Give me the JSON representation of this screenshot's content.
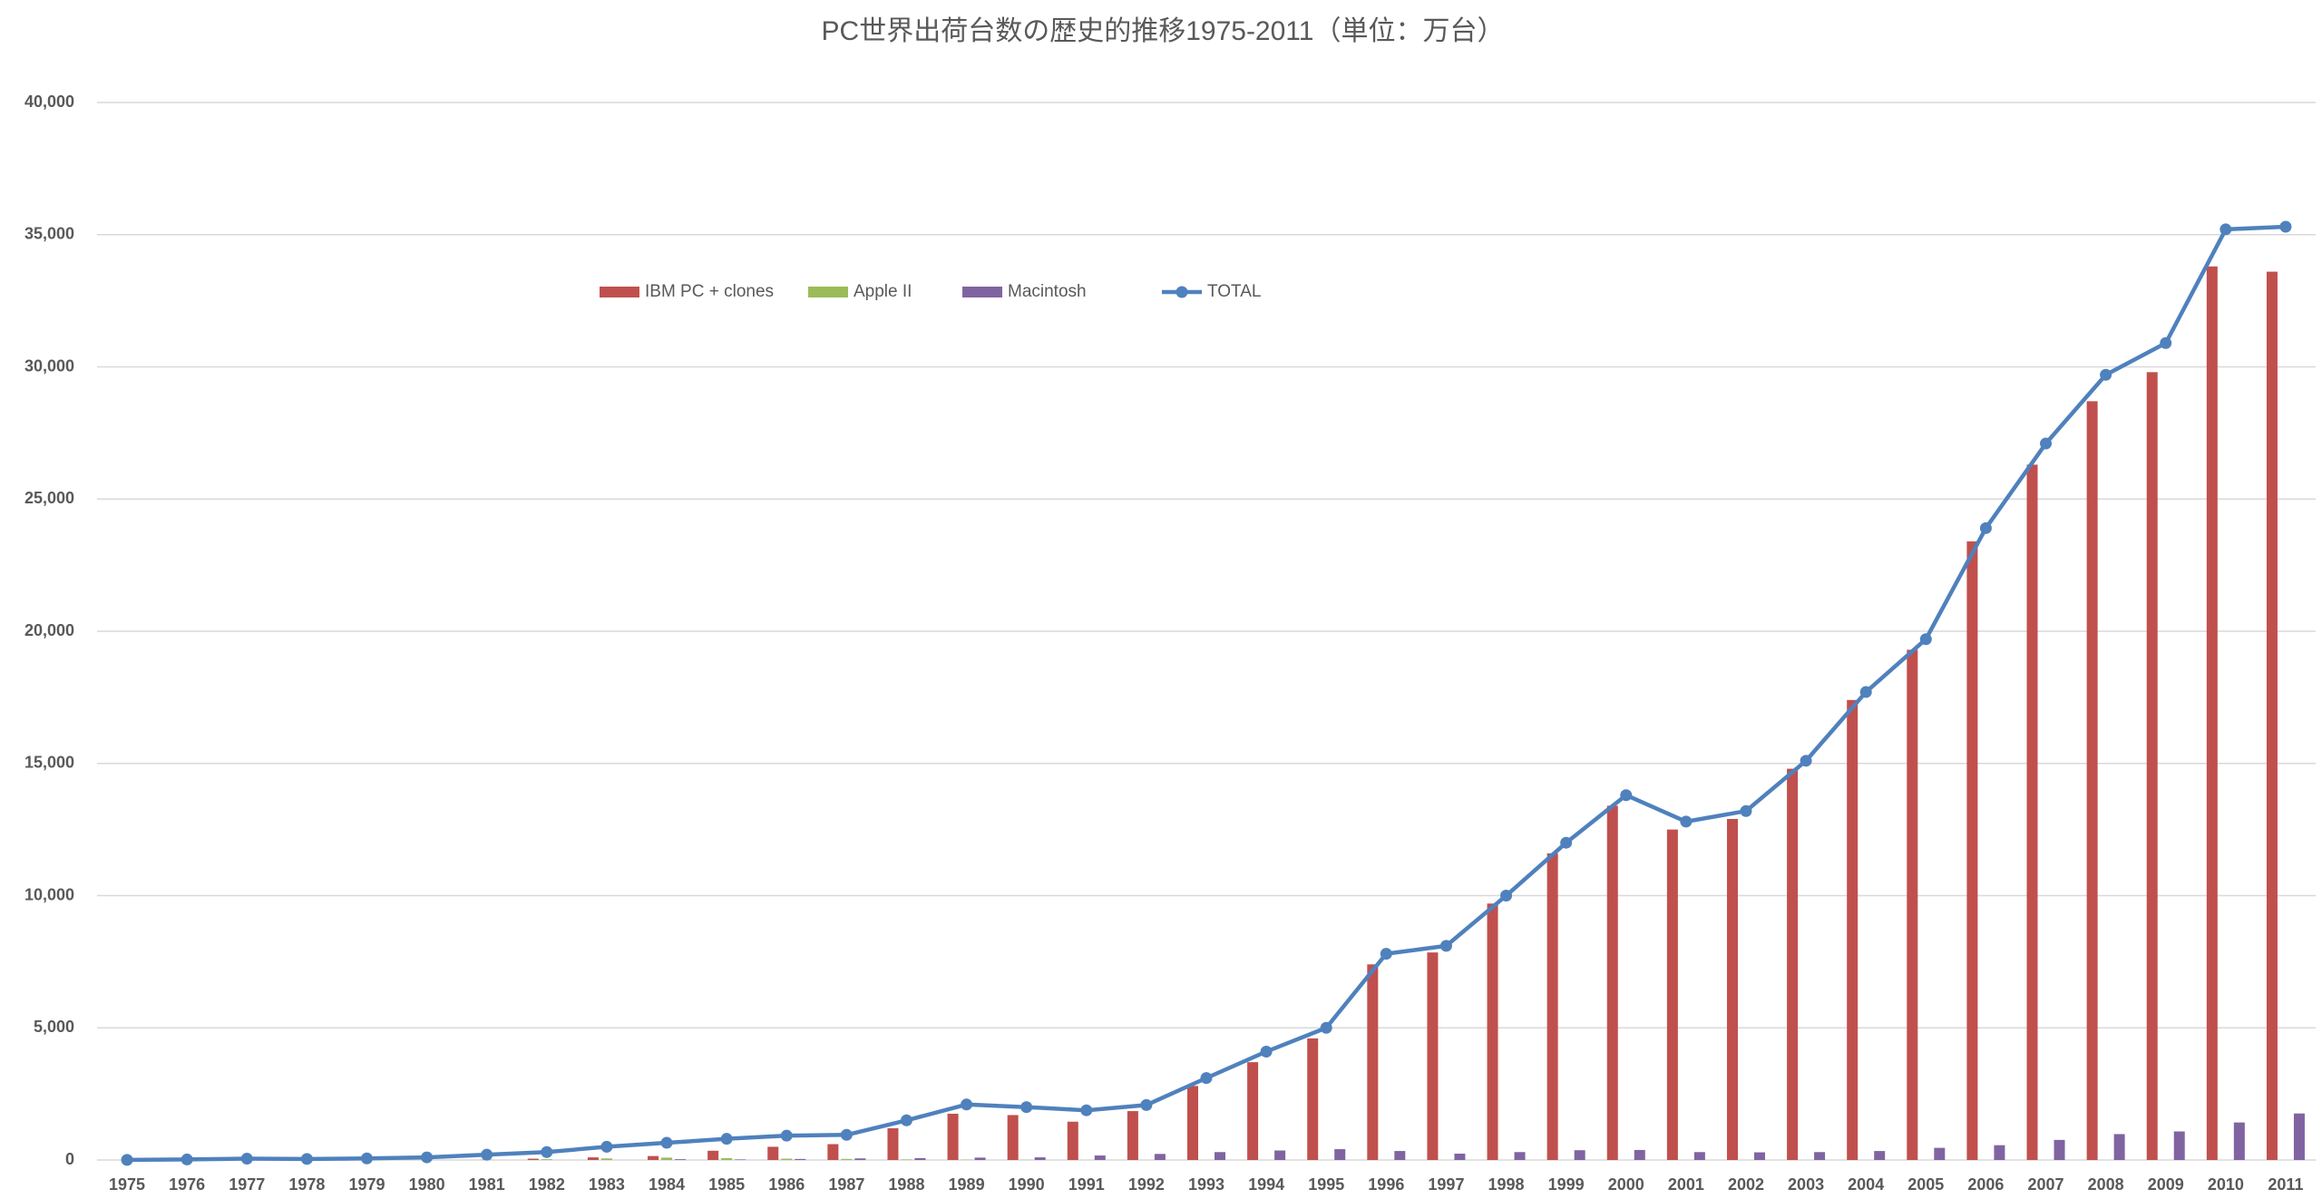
{
  "chart_data": {
    "type": "bar-line",
    "title": "PC世界出荷台数の歴史的推移1975-2011（単位：万台）",
    "categories": [
      "1975",
      "1976",
      "1977",
      "1978",
      "1979",
      "1980",
      "1981",
      "1982",
      "1983",
      "1984",
      "1985",
      "1986",
      "1987",
      "1988",
      "1989",
      "1990",
      "1991",
      "1992",
      "1993",
      "1994",
      "1995",
      "1996",
      "1997",
      "1998",
      "1999",
      "2000",
      "2001",
      "2002",
      "2003",
      "2004",
      "2005",
      "2006",
      "2007",
      "2008",
      "2009",
      "2010",
      "2011"
    ],
    "series": [
      {
        "name": "IBM PC + clones",
        "color": "#c0504d",
        "kind": "bar",
        "values": [
          0,
          0,
          0,
          0,
          0,
          0,
          0,
          50,
          100,
          150,
          350,
          500,
          600,
          1200,
          1750,
          1700,
          1450,
          1850,
          2800,
          3700,
          4600,
          7400,
          7850,
          9700,
          11600,
          13400,
          12500,
          12900,
          14800,
          17400,
          19300,
          23400,
          26300,
          28700,
          29800,
          33800,
          33600
        ]
      },
      {
        "name": "Apple II",
        "color": "#9bbb59",
        "kind": "bar",
        "values": [
          0,
          0,
          1,
          2,
          3,
          8,
          15,
          30,
          60,
          90,
          70,
          50,
          40,
          20,
          10,
          5,
          0,
          0,
          0,
          0,
          0,
          0,
          0,
          0,
          0,
          0,
          0,
          0,
          0,
          0,
          0,
          0,
          0,
          0,
          0,
          0,
          0
        ]
      },
      {
        "name": "Macintosh",
        "color": "#8064a2",
        "kind": "bar",
        "values": [
          0,
          0,
          0,
          0,
          0,
          0,
          0,
          0,
          0,
          30,
          20,
          40,
          60,
          70,
          90,
          100,
          170,
          230,
          300,
          360,
          410,
          340,
          240,
          300,
          370,
          380,
          300,
          290,
          300,
          340,
          460,
          560,
          760,
          980,
          1080,
          1420,
          1760
        ]
      },
      {
        "name": "TOTAL",
        "color": "#4f81bd",
        "kind": "line",
        "values": [
          5,
          20,
          50,
          40,
          60,
          100,
          200,
          300,
          500,
          650,
          800,
          920,
          950,
          1500,
          2100,
          2000,
          1880,
          2080,
          3100,
          4100,
          5000,
          7800,
          8100,
          10000,
          12000,
          13800,
          12800,
          13200,
          15100,
          17700,
          19700,
          23900,
          27100,
          29700,
          30900,
          35200,
          35300
        ]
      }
    ],
    "ylim": [
      0,
      40000
    ],
    "yticks": [
      {
        "value": 0,
        "label": "0"
      },
      {
        "value": 5000,
        "label": "5,000"
      },
      {
        "value": 10000,
        "label": "10,000"
      },
      {
        "value": 15000,
        "label": "15,000"
      },
      {
        "value": 20000,
        "label": "20,000"
      },
      {
        "value": 25000,
        "label": "25,000"
      },
      {
        "value": 30000,
        "label": "30,000"
      },
      {
        "value": 35000,
        "label": "35,000"
      },
      {
        "value": 40000,
        "label": "40,000"
      }
    ],
    "grid": true
  }
}
